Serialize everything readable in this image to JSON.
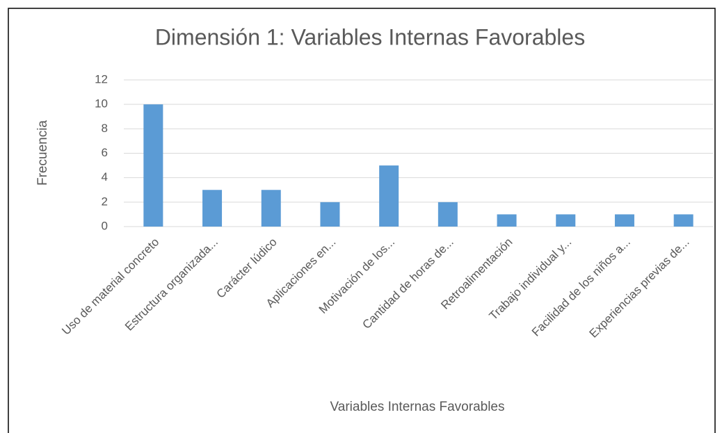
{
  "chart_data": {
    "type": "bar",
    "title": "Dimensión 1: Variables Internas Favorables",
    "x_label": "Variables Internas Favorables",
    "y_label": "Frecuencia",
    "categories": [
      "Uso de material concreto",
      "Estructura organizada...",
      "Carácter lúdico",
      "Aplicaciones en...",
      "Motivación de los...",
      "Cantidad de horas de...",
      "Retroalimentación",
      "Trabajo individual y...",
      "Facilidad de los niños a...",
      "Experiencias previas de..."
    ],
    "values": [
      10,
      3,
      3,
      2,
      5,
      2,
      1,
      1,
      1,
      1
    ],
    "color": "#5b9bd5",
    "ylim": [
      0,
      12
    ],
    "yticks": [
      0,
      2,
      4,
      6,
      8,
      10,
      12
    ],
    "grid": true
  }
}
